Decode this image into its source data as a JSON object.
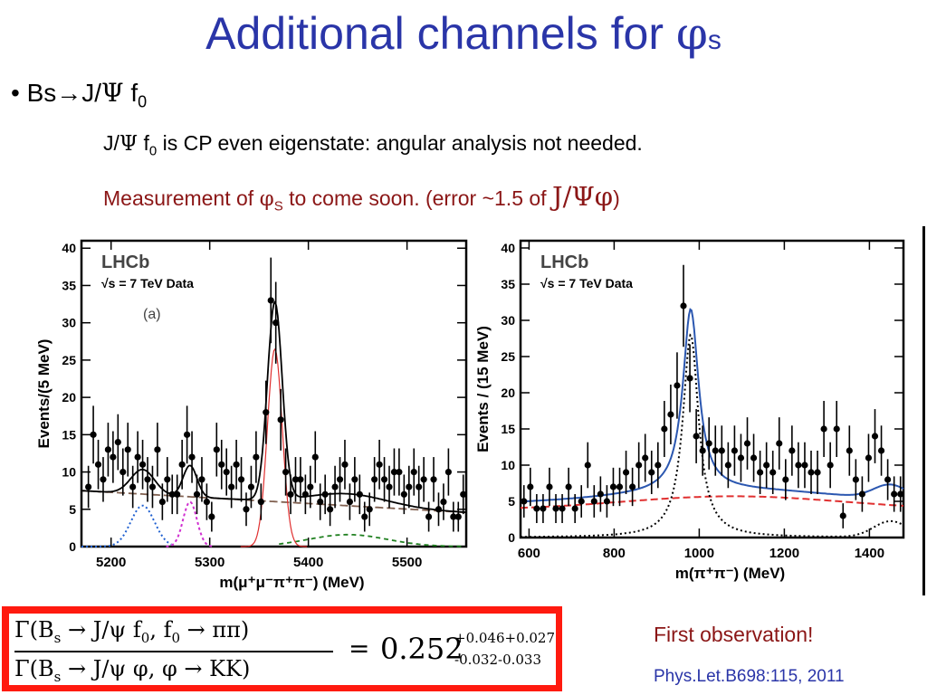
{
  "slide": {
    "title_main": "Additional channels for ",
    "title_phi": "φ",
    "title_sub": "s",
    "bullet_prefix": "• Bs",
    "bullet_arrow": "→",
    "bullet_jpsi": "J/",
    "bullet_psi": "Ψ",
    "bullet_f": " f",
    "bullet_fsub": "0",
    "line1_a": "J/",
    "line1_psi": "Ψ",
    "line1_f": " f",
    "line1_fsub": "0",
    "line1_b": " is CP even eigenstate: angular analysis not needed.",
    "line2_a": "Measurement of ",
    "line2_phi": "φ",
    "line2_sub": "S",
    "line2_b": " to come soon. (error ~1.5 of ",
    "line2_c": "J/Ψφ",
    "line2_d": ")",
    "first_observation": "First observation!",
    "reference": "Phys.Let.B698:115, 2011"
  },
  "formula": {
    "num_a": "Γ(B",
    "num_sub": "s",
    "num_b": " → J/ψ f",
    "num_sub2": "0",
    "num_c": ", f",
    "num_sub3": "0",
    "num_d": " → ππ)",
    "den_a": "Γ(B",
    "den_sub": "s",
    "den_b": " → J/ψ φ, φ → KK)",
    "equals": "=",
    "value": "0.252",
    "err_up": "+0.046+0.027",
    "err_down": "-0.032-0.033"
  },
  "chart_data": [
    {
      "type": "scatter",
      "label_lhcb": "LHCb",
      "label_energy": "√s = 7 TeV Data",
      "label_panel": "(a)",
      "xlabel": "m(μ⁺μ⁻π⁺π⁻) (MeV)",
      "ylabel": "Events/(5 MeV)",
      "xlim": [
        5170,
        5560
      ],
      "ylim": [
        0,
        41
      ],
      "xticks": [
        5200,
        5300,
        5400,
        5500
      ],
      "yticks": [
        0,
        5,
        10,
        15,
        20,
        25,
        30,
        35,
        40
      ],
      "points": {
        "x": [
          5177,
          5182,
          5187,
          5192,
          5197,
          5202,
          5207,
          5212,
          5217,
          5222,
          5227,
          5232,
          5237,
          5242,
          5247,
          5252,
          5257,
          5262,
          5267,
          5272,
          5277,
          5282,
          5287,
          5292,
          5297,
          5302,
          5307,
          5312,
          5317,
          5322,
          5327,
          5332,
          5337,
          5342,
          5347,
          5352,
          5357,
          5362,
          5367,
          5372,
          5377,
          5382,
          5387,
          5392,
          5397,
          5402,
          5407,
          5412,
          5417,
          5422,
          5427,
          5432,
          5437,
          5442,
          5447,
          5452,
          5457,
          5462,
          5467,
          5472,
          5477,
          5482,
          5487,
          5492,
          5497,
          5502,
          5507,
          5512,
          5517,
          5522,
          5527,
          5532,
          5537,
          5542,
          5547,
          5552,
          5557
        ],
        "y": [
          8,
          15,
          11,
          9,
          13,
          12,
          14,
          10,
          13,
          8,
          12,
          11,
          9,
          8,
          13,
          6,
          9,
          7,
          7,
          11,
          15,
          12,
          7,
          9,
          6,
          4,
          13,
          11,
          10,
          8,
          11,
          9,
          5,
          8,
          12,
          6,
          18,
          33,
          30,
          17,
          10,
          7,
          9,
          9,
          7,
          8,
          12,
          6,
          7,
          5,
          8,
          9,
          11,
          6,
          9,
          7,
          4,
          5,
          9,
          11,
          9,
          8,
          10,
          10,
          7,
          8,
          10,
          8,
          9,
          4,
          9,
          5,
          6,
          10,
          4,
          4,
          7
        ]
      },
      "fit_lines": {
        "total_color": "#000000",
        "signal_color": "#e03030",
        "background_color": "#806050",
        "reflection1_color": "#2060d0",
        "reflection2_color": "#d030d0",
        "reflection3_color": "#208020"
      }
    },
    {
      "type": "scatter",
      "label_lhcb": "LHCb",
      "label_energy": "√s = 7 TeV Data",
      "xlabel": "m(π⁺π⁻) (MeV)",
      "ylabel": "Events / (15 MeV)",
      "xlim": [
        580,
        1480
      ],
      "ylim": [
        0,
        41
      ],
      "xticks": [
        600,
        800,
        1000,
        1200,
        1400
      ],
      "yticks": [
        0,
        5,
        10,
        15,
        20,
        25,
        30,
        35,
        40
      ],
      "points": {
        "x": [
          588,
          603,
          618,
          633,
          648,
          663,
          678,
          693,
          708,
          723,
          738,
          753,
          768,
          783,
          798,
          813,
          828,
          843,
          858,
          873,
          888,
          903,
          918,
          933,
          948,
          963,
          978,
          993,
          1008,
          1023,
          1038,
          1053,
          1068,
          1083,
          1098,
          1113,
          1128,
          1143,
          1158,
          1173,
          1188,
          1203,
          1218,
          1233,
          1248,
          1263,
          1278,
          1293,
          1308,
          1323,
          1338,
          1353,
          1368,
          1383,
          1398,
          1413,
          1428,
          1443,
          1458,
          1473
        ],
        "y": [
          5,
          7,
          4,
          4,
          7,
          4,
          4,
          7,
          4,
          5,
          10,
          5,
          6,
          5,
          7,
          7,
          9,
          7,
          10,
          11,
          9,
          10,
          15,
          17,
          21,
          32,
          22,
          14,
          12,
          13,
          12,
          12,
          10,
          12,
          11,
          13,
          11,
          9,
          10,
          9,
          13,
          8,
          12,
          10,
          10,
          9,
          9,
          15,
          10,
          15,
          3,
          12,
          8,
          6,
          11,
          14,
          12,
          8,
          6,
          6
        ]
      },
      "fit_lines": {
        "total_color": "#2b57b0",
        "signal_color": "#000000",
        "background_color": "#e03030"
      }
    }
  ]
}
